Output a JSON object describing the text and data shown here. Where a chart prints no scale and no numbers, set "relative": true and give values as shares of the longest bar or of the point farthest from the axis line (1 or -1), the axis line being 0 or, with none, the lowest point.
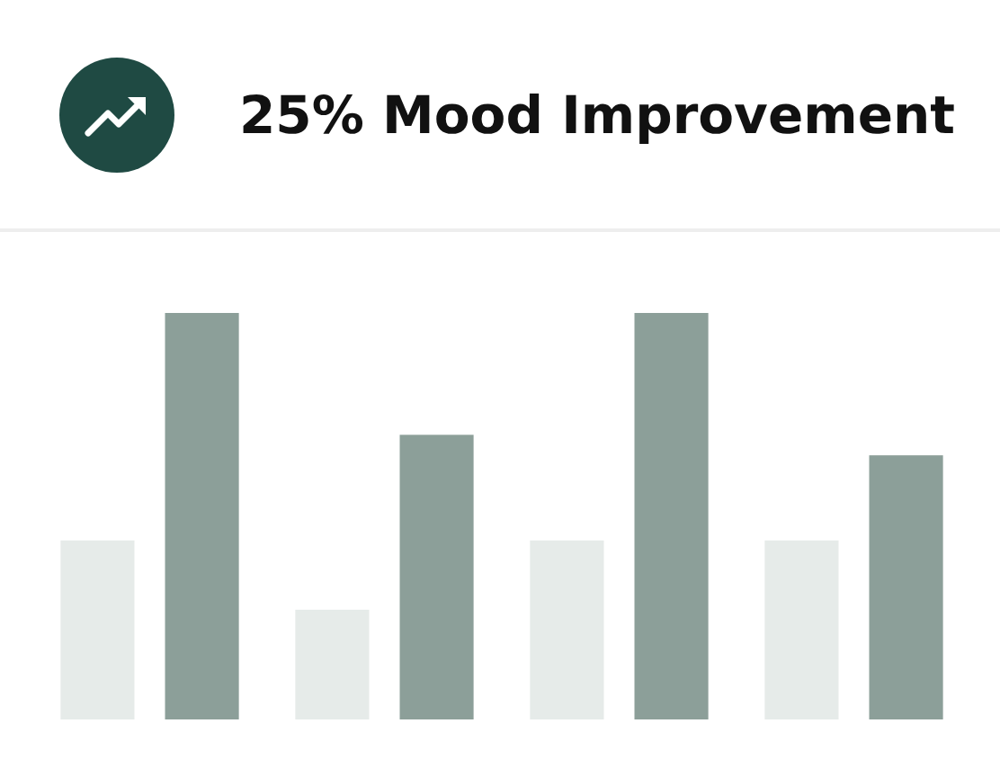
{
  "chart_data": {
    "type": "bar",
    "title": "25% Mood Improvement",
    "categories": [
      null,
      null,
      null,
      null
    ],
    "relative": true,
    "series": [
      {
        "color": "#e6ebe9",
        "values": [
          0.44,
          0.27,
          0.44,
          0.44
        ]
      },
      {
        "color": "#8c9f99",
        "values": [
          1,
          0.7,
          1,
          0.65
        ]
      }
    ]
  }
}
